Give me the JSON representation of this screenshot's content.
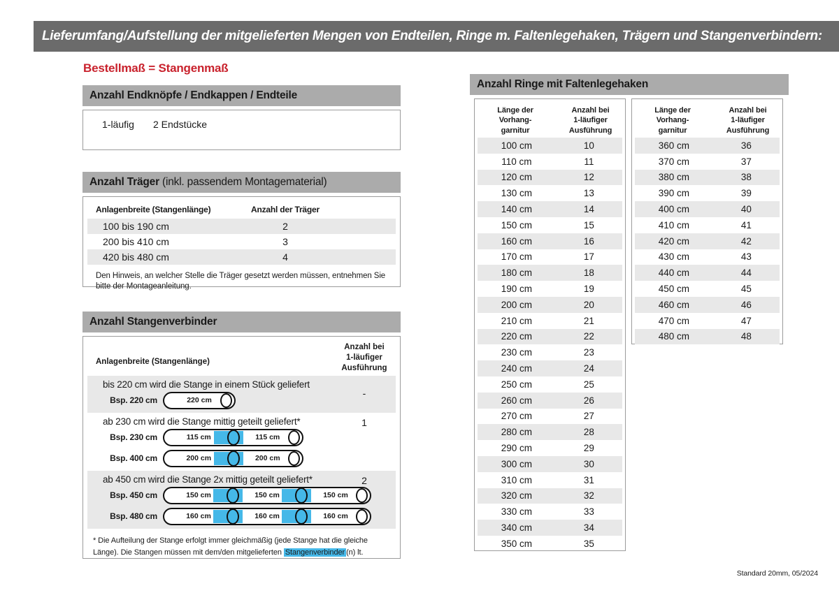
{
  "page": {
    "title": "Lieferumfang/Aufstellung der mitgelieferten Mengen von Endteilen, Ringe m. Faltenlegehaken, Trägern und Stangenverbindern:",
    "subtitle": "Bestellmaß = Stangenmaß",
    "footer": "Standard 20mm, 05/2024"
  },
  "colors": {
    "titlebar_bg": "#6b6b6b",
    "section_bg": "#ababab",
    "stripe_bg": "#e8e8e8",
    "accent_red": "#c9222d",
    "accent_blue": "#45b8e8",
    "border": "#9b9b9b"
  },
  "endteile": {
    "heading": "Anzahl Endknöpfe / Endkappen / Endteile",
    "row_label": "1-läufig",
    "row_value": "2 Endstücke"
  },
  "traeger": {
    "heading_bold": "Anzahl Träger",
    "heading_normal": " (inkl. passendem Montagematerial)",
    "col_width": "Anlagenbreite (Stangenlänge)",
    "col_count": "Anzahl der Träger",
    "rows": [
      {
        "range": "100 bis 190 cm",
        "count": "2"
      },
      {
        "range": "200 bis 410 cm",
        "count": "3"
      },
      {
        "range": "420 bis 480 cm",
        "count": "4"
      }
    ],
    "note": "Den Hinweis, an welcher Stelle die Träger gesetzt werden müssen, entnehmen Sie bitte der Montageanleitung."
  },
  "verbinder": {
    "heading": "Anzahl Stangenverbinder",
    "col_width": "Anlagenbreite (Stangenlänge)",
    "col_count": "Anzahl bei\n1-läufiger\nAusführung",
    "groups": [
      {
        "text": "bis 220 cm wird die Stange in einem Stück geliefert",
        "count": "-",
        "examples": [
          {
            "label": "Bsp. 220 cm",
            "segments": [
              "220 cm"
            ]
          }
        ]
      },
      {
        "text": "ab 230 cm wird die Stange mittig geteilt geliefert*",
        "count": "1",
        "examples": [
          {
            "label": "Bsp. 230 cm",
            "segments": [
              "115 cm",
              "115 cm"
            ]
          },
          {
            "label": "Bsp. 400 cm",
            "segments": [
              "200 cm",
              "200 cm"
            ]
          }
        ]
      },
      {
        "text": "ab 450 cm wird die Stange 2x mittig geteilt geliefert*",
        "count": "2",
        "examples": [
          {
            "label": "Bsp. 450 cm",
            "segments": [
              "150 cm",
              "150 cm",
              "150 cm"
            ]
          },
          {
            "label": "Bsp. 480 cm",
            "segments": [
              "160 cm",
              "160 cm",
              "160 cm"
            ]
          }
        ]
      }
    ],
    "footnote_pre": "* Die Aufteilung der Stange erfolgt immer gleichmäßig (jede Stange hat die gleiche Länge). Die Stangen müssen mit dem/den mitgelieferten ",
    "footnote_highlight": "Stangenverbinder",
    "footnote_post": "(n) lt. Montageanleitung verbunden werden."
  },
  "ringe": {
    "heading": "Anzahl Ringe mit Faltenlegehaken",
    "col_length": "Länge der\nVorhang-\ngarnitur",
    "col_count": "Anzahl bei\n1-läufiger\nAusführung",
    "table1": [
      [
        "100 cm",
        "10"
      ],
      [
        "110 cm",
        "11"
      ],
      [
        "120 cm",
        "12"
      ],
      [
        "130 cm",
        "13"
      ],
      [
        "140 cm",
        "14"
      ],
      [
        "150 cm",
        "15"
      ],
      [
        "160 cm",
        "16"
      ],
      [
        "170 cm",
        "17"
      ],
      [
        "180 cm",
        "18"
      ],
      [
        "190 cm",
        "19"
      ],
      [
        "200 cm",
        "20"
      ],
      [
        "210 cm",
        "21"
      ],
      [
        "220 cm",
        "22"
      ],
      [
        "230 cm",
        "23"
      ],
      [
        "240 cm",
        "24"
      ],
      [
        "250 cm",
        "25"
      ],
      [
        "260 cm",
        "26"
      ],
      [
        "270 cm",
        "27"
      ],
      [
        "280 cm",
        "28"
      ],
      [
        "290 cm",
        "29"
      ],
      [
        "300 cm",
        "30"
      ],
      [
        "310 cm",
        "31"
      ],
      [
        "320 cm",
        "32"
      ],
      [
        "330 cm",
        "33"
      ],
      [
        "340 cm",
        "34"
      ],
      [
        "350 cm",
        "35"
      ]
    ],
    "table2": [
      [
        "360 cm",
        "36"
      ],
      [
        "370 cm",
        "37"
      ],
      [
        "380 cm",
        "38"
      ],
      [
        "390 cm",
        "39"
      ],
      [
        "400 cm",
        "40"
      ],
      [
        "410 cm",
        "41"
      ],
      [
        "420 cm",
        "42"
      ],
      [
        "430 cm",
        "43"
      ],
      [
        "440 cm",
        "44"
      ],
      [
        "450 cm",
        "45"
      ],
      [
        "460 cm",
        "46"
      ],
      [
        "470 cm",
        "47"
      ],
      [
        "480 cm",
        "48"
      ]
    ]
  }
}
